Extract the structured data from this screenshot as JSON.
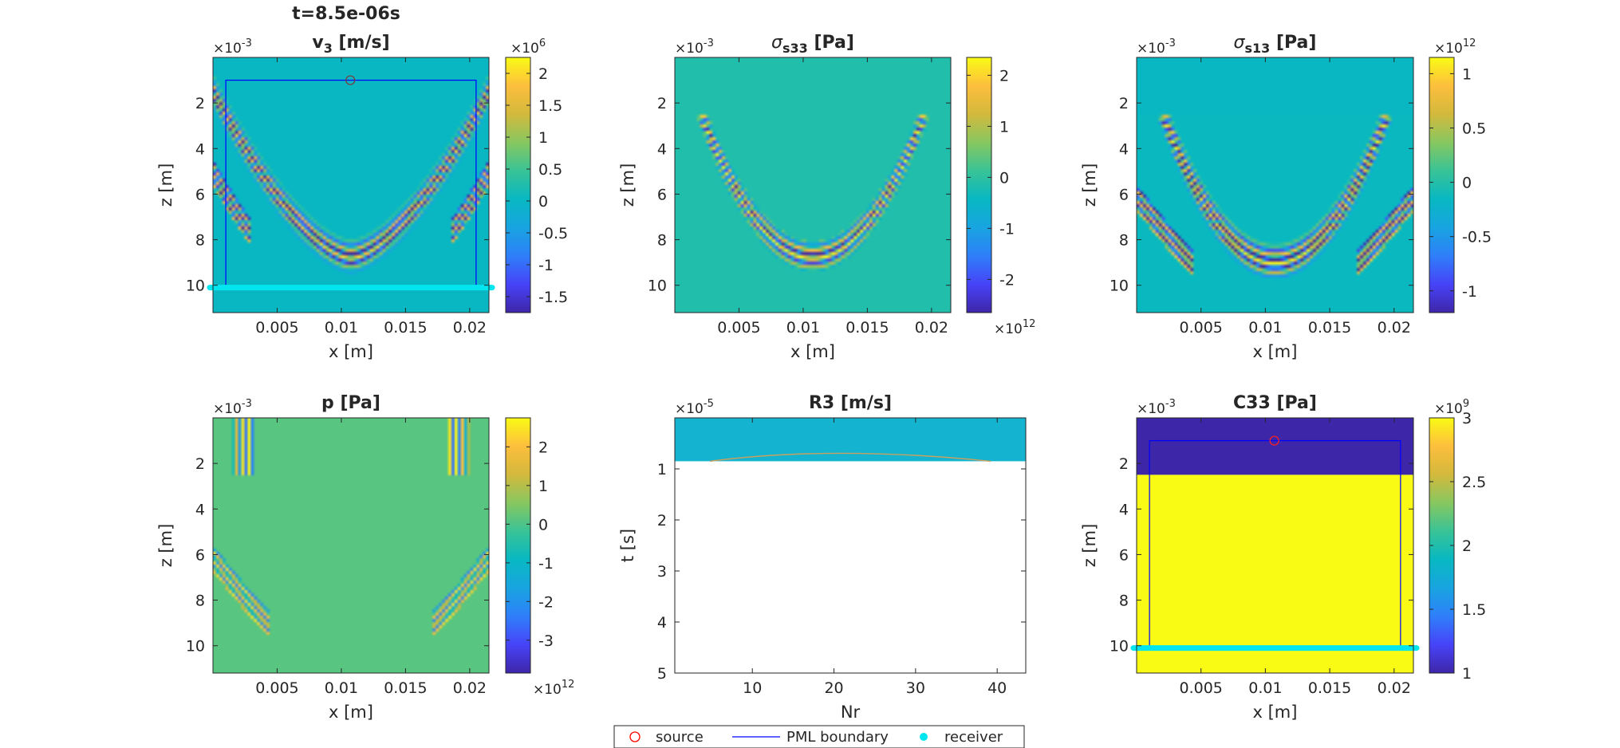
{
  "figure": {
    "time_title": "t=8.5e-06s",
    "colormap": [
      "#3e26a8",
      "#4743f8",
      "#2f7ffa",
      "#18a4e0",
      "#08b8c2",
      "#39c396",
      "#87c760",
      "#d3b93c",
      "#fdbe3d",
      "#f9fb15"
    ]
  },
  "legend": {
    "items": [
      {
        "label": "source",
        "marker": "red-circle",
        "color": "#ff0000"
      },
      {
        "label": "PML boundary",
        "marker": "blue-line",
        "color": "#0000ff"
      },
      {
        "label": "receiver",
        "marker": "cyan-dot",
        "color": "#00e5ee"
      }
    ]
  },
  "chart_data": [
    {
      "type": "heatmap",
      "title": "v",
      "title_sub": "3",
      "title_rest": " [m/s]",
      "xlabel": "x [m]",
      "ylabel": "z [m]",
      "x_ticks": [
        "0.005",
        "0.01",
        "0.015",
        "0.02"
      ],
      "x_tick_values": [
        0.005,
        0.01,
        0.015,
        0.02
      ],
      "xlim": [
        0,
        0.0215
      ],
      "y_ticks": [
        "2",
        "4",
        "6",
        "8",
        "10"
      ],
      "y_tick_values": [
        2,
        4,
        6,
        8,
        10
      ],
      "ylim": [
        0,
        11.2
      ],
      "y_multiplier": "×10",
      "y_multiplier_exp": "-3",
      "colorbar_ticks": [
        "2",
        "1.5",
        "1",
        "0.5",
        "0",
        "-0.5",
        "-1",
        "-1.5"
      ],
      "colorbar_tick_values": [
        2,
        1.5,
        1,
        0.5,
        0,
        -0.5,
        -1,
        -1.5
      ],
      "clim": [
        -1.75,
        2.25
      ],
      "colorbar_multiplier": "×10",
      "colorbar_multiplier_exp": "6",
      "colorbar_multiplier_pos": "top",
      "pml": {
        "x": [
          0.001,
          0.0205
        ],
        "z": [
          1,
          10.1
        ]
      },
      "source": {
        "x": 0.0107,
        "z": 1
      },
      "receivers": {
        "z": 10.1,
        "x_from": 0,
        "x_to": 0.0215
      },
      "pattern": "v3"
    },
    {
      "type": "heatmap",
      "title": "σ",
      "title_sub": "s33",
      "title_rest": " [Pa]",
      "xlabel": "x [m]",
      "ylabel": "z [m]",
      "x_ticks": [
        "0.005",
        "0.01",
        "0.015",
        "0.02"
      ],
      "x_tick_values": [
        0.005,
        0.01,
        0.015,
        0.02
      ],
      "xlim": [
        0,
        0.0215
      ],
      "y_ticks": [
        "2",
        "4",
        "6",
        "8",
        "10"
      ],
      "y_tick_values": [
        2,
        4,
        6,
        8,
        10
      ],
      "ylim": [
        0,
        11.2
      ],
      "y_multiplier": "×10",
      "y_multiplier_exp": "-3",
      "colorbar_ticks": [
        "2",
        "1",
        "0",
        "-1",
        "-2"
      ],
      "colorbar_tick_values": [
        2,
        1,
        0,
        -1,
        -2
      ],
      "clim": [
        -2.65,
        2.35
      ],
      "colorbar_multiplier": "×10",
      "colorbar_multiplier_exp": "12",
      "colorbar_multiplier_pos": "bottom",
      "pattern": "s33"
    },
    {
      "type": "heatmap",
      "title": "σ",
      "title_sub": "s13",
      "title_rest": " [Pa]",
      "xlabel": "x [m]",
      "ylabel": "z [m]",
      "x_ticks": [
        "0.005",
        "0.01",
        "0.015",
        "0.02"
      ],
      "x_tick_values": [
        0.005,
        0.01,
        0.015,
        0.02
      ],
      "xlim": [
        0,
        0.0215
      ],
      "y_ticks": [
        "2",
        "4",
        "6",
        "8",
        "10"
      ],
      "y_tick_values": [
        2,
        4,
        6,
        8,
        10
      ],
      "ylim": [
        0,
        11.2
      ],
      "y_multiplier": "×10",
      "y_multiplier_exp": "-3",
      "colorbar_ticks": [
        "1",
        "0.5",
        "0",
        "-0.5",
        "-1"
      ],
      "colorbar_tick_values": [
        1,
        0.5,
        0,
        -0.5,
        -1
      ],
      "clim": [
        -1.2,
        1.15
      ],
      "colorbar_multiplier": "×10",
      "colorbar_multiplier_exp": "12",
      "colorbar_multiplier_pos": "top",
      "pattern": "s13"
    },
    {
      "type": "heatmap",
      "title": "p [Pa]",
      "title_sub": "",
      "title_rest": "",
      "xlabel": "x [m]",
      "ylabel": "z [m]",
      "x_ticks": [
        "0.005",
        "0.01",
        "0.015",
        "0.02"
      ],
      "x_tick_values": [
        0.005,
        0.01,
        0.015,
        0.02
      ],
      "xlim": [
        0,
        0.0215
      ],
      "y_ticks": [
        "2",
        "4",
        "6",
        "8",
        "10"
      ],
      "y_tick_values": [
        2,
        4,
        6,
        8,
        10
      ],
      "ylim": [
        0,
        11.2
      ],
      "y_multiplier": "×10",
      "y_multiplier_exp": "-3",
      "colorbar_ticks": [
        "2",
        "1",
        "0",
        "-1",
        "-2",
        "-3"
      ],
      "colorbar_tick_values": [
        2,
        1,
        0,
        -1,
        -2,
        -3
      ],
      "clim": [
        -3.85,
        2.75
      ],
      "colorbar_multiplier": "×10",
      "colorbar_multiplier_exp": "12",
      "colorbar_multiplier_pos": "bottom",
      "pattern": "p"
    },
    {
      "type": "heatmap",
      "title": "R3 [m/s]",
      "title_sub": "",
      "title_rest": "",
      "xlabel": "Nr",
      "ylabel": "t [s]",
      "x_ticks": [
        "10",
        "20",
        "30",
        "40"
      ],
      "x_tick_values": [
        10,
        20,
        30,
        40
      ],
      "xlim": [
        0.5,
        43.5
      ],
      "y_ticks": [
        "1",
        "2",
        "3",
        "4",
        "5"
      ],
      "y_tick_values": [
        1,
        2,
        3,
        4,
        5
      ],
      "ylim": [
        0,
        5
      ],
      "y_multiplier": "×10",
      "y_multiplier_exp": "-5",
      "filled_until_t": 0.85,
      "pattern": "r3"
    },
    {
      "type": "heatmap",
      "title": "C33 [Pa]",
      "title_sub": "",
      "title_rest": "",
      "xlabel": "x [m]",
      "ylabel": "z [m]",
      "x_ticks": [
        "0.005",
        "0.01",
        "0.015",
        "0.02"
      ],
      "x_tick_values": [
        0.005,
        0.01,
        0.015,
        0.02
      ],
      "xlim": [
        0,
        0.0215
      ],
      "y_ticks": [
        "2",
        "4",
        "6",
        "8",
        "10"
      ],
      "y_tick_values": [
        2,
        4,
        6,
        8,
        10
      ],
      "ylim": [
        0,
        11.2
      ],
      "y_multiplier": "×10",
      "y_multiplier_exp": "-3",
      "colorbar_ticks": [
        "3",
        "2.5",
        "2",
        "1.5",
        "1"
      ],
      "colorbar_tick_values": [
        3,
        2.5,
        2,
        1.5,
        1
      ],
      "clim": [
        1,
        3
      ],
      "colorbar_multiplier": "×10",
      "colorbar_multiplier_exp": "9",
      "colorbar_multiplier_pos": "top",
      "layers": [
        {
          "z_from": 0,
          "z_to": 2.5,
          "value": 1
        },
        {
          "z_from": 2.5,
          "z_to": 11.2,
          "value": 3
        }
      ],
      "pml": {
        "x": [
          0.001,
          0.0205
        ],
        "z": [
          1,
          10.1
        ]
      },
      "source": {
        "x": 0.0107,
        "z": 1
      },
      "receivers": {
        "z": 10.1,
        "x_from": 0,
        "x_to": 0.0215
      },
      "pattern": "c33"
    }
  ]
}
